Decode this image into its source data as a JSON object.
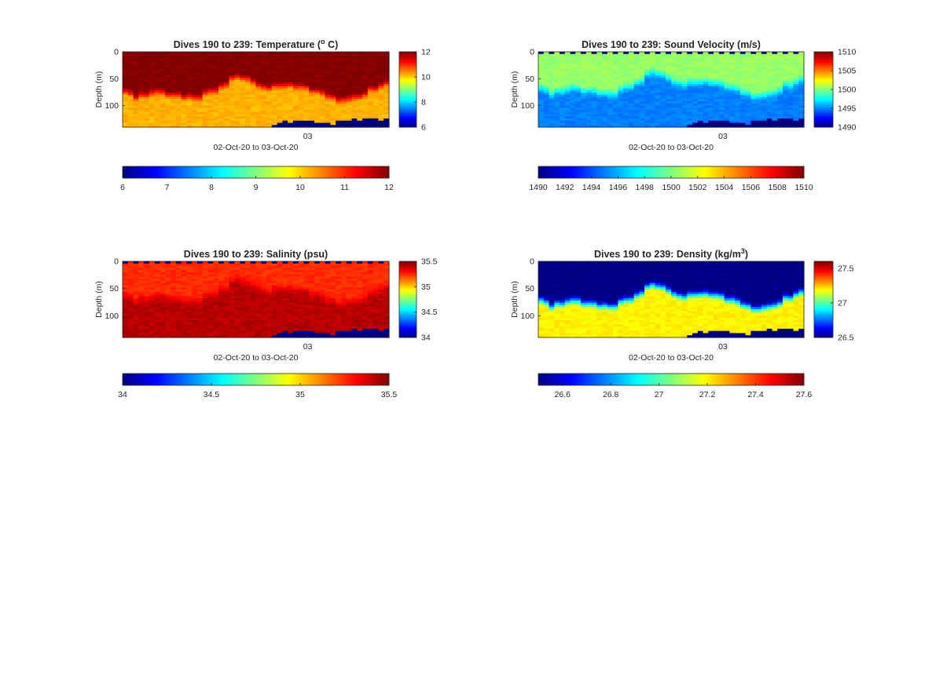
{
  "chart_data": [
    {
      "type": "heatmap",
      "variable": "temperature",
      "title_prefix": "Dives 190 to 239: Temperature (",
      "title_sup": "o",
      "title_suffix": " C)",
      "ylabel": "Depth (m)",
      "xlabel": "02-Oct-20 to 03-Oct-20",
      "x_tick_labels": [
        "03"
      ],
      "y_ticks": [
        0,
        50,
        100
      ],
      "ylim": [
        0,
        140
      ],
      "dives": [
        190,
        239
      ],
      "clim": [
        6,
        12
      ],
      "side_colorbar_ticks": [
        6,
        8,
        10,
        12
      ],
      "bottom_colorbar_ticks": [
        6,
        7,
        8,
        9,
        10,
        11,
        12
      ],
      "colormap": "jet",
      "surface_value": 12,
      "deep_value": 10.2,
      "thermocline_depth_m": [
        60,
        80
      ],
      "seafloor_value": 6
    },
    {
      "type": "heatmap",
      "variable": "sound_velocity",
      "title": "Dives 190 to 239: Sound Velocity (m/s)",
      "ylabel": "Depth (m)",
      "xlabel": "02-Oct-20 to 03-Oct-20",
      "x_tick_labels": [
        "03"
      ],
      "y_ticks": [
        0,
        50,
        100
      ],
      "ylim": [
        0,
        140
      ],
      "dives": [
        190,
        239
      ],
      "clim": [
        1490,
        1510
      ],
      "side_colorbar_ticks": [
        1490,
        1495,
        1500,
        1505,
        1510
      ],
      "bottom_colorbar_ticks": [
        1490,
        1492,
        1494,
        1496,
        1498,
        1500,
        1502,
        1504,
        1506,
        1508,
        1510
      ],
      "colormap": "jet",
      "surface_value": 1500.5,
      "deep_value": 1495,
      "thermocline_depth_m": [
        50,
        75
      ],
      "seafloor_value": 1490
    },
    {
      "type": "heatmap",
      "variable": "salinity",
      "title": "Dives 190 to 239: Salinity (psu)",
      "ylabel": "Depth (m)",
      "xlabel": "02-Oct-20 to 03-Oct-20",
      "x_tick_labels": [
        "03"
      ],
      "y_ticks": [
        0,
        50,
        100
      ],
      "ylim": [
        0,
        140
      ],
      "dives": [
        190,
        239
      ],
      "clim": [
        34,
        35.5
      ],
      "side_colorbar_ticks": [
        34,
        34.5,
        35,
        35.5
      ],
      "bottom_colorbar_ticks": [
        34,
        34.5,
        35,
        35.5
      ],
      "colormap": "jet",
      "surface_value": 35.25,
      "deep_value": 35.42,
      "thermocline_depth_m": [
        45,
        70
      ],
      "seafloor_value": 34
    },
    {
      "type": "heatmap",
      "variable": "density",
      "title_prefix": "Dives 190 to 239: Density (kg/m",
      "title_sup": "3",
      "title_suffix": ")",
      "ylabel": "Depth (m)",
      "xlabel": "02-Oct-20 to 03-Oct-20",
      "x_tick_labels": [
        "03"
      ],
      "y_ticks": [
        0,
        50,
        100
      ],
      "ylim": [
        0,
        140
      ],
      "dives": [
        190,
        239
      ],
      "clim": [
        26.5,
        27.6
      ],
      "side_colorbar_ticks": [
        26.5,
        27,
        27.5
      ],
      "bottom_colorbar_ticks": [
        26.6,
        26.8,
        27,
        27.2,
        27.4,
        27.6
      ],
      "colormap": "jet",
      "surface_value": 26.5,
      "deep_value": 27.2,
      "thermocline_depth_m": [
        55,
        80
      ],
      "seafloor_value": 26.5
    }
  ]
}
